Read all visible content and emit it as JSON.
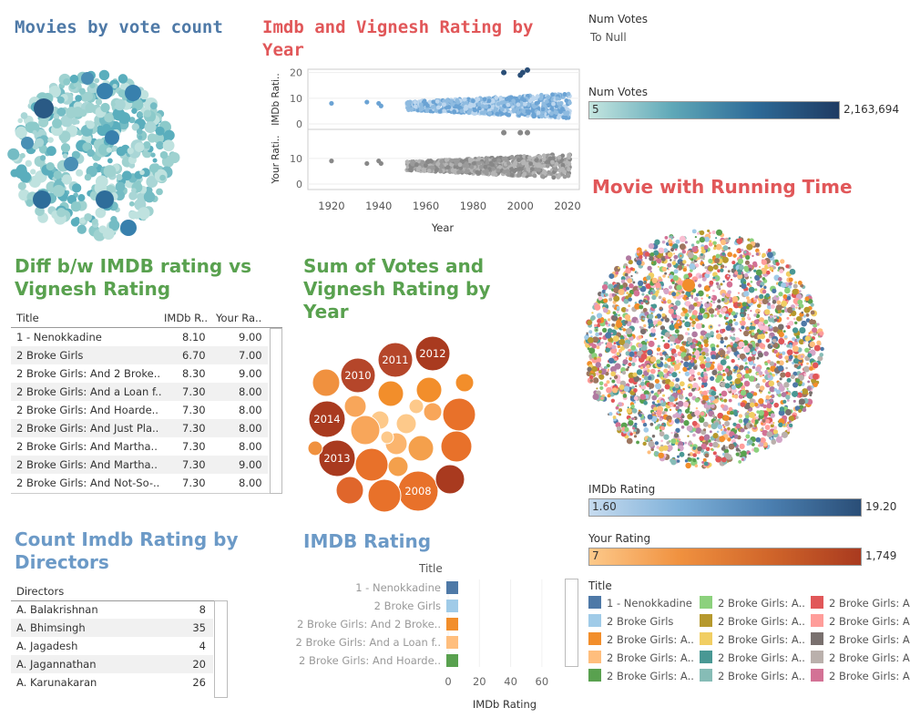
{
  "titles": {
    "movies_by_vote": "Movies by vote count",
    "imdb_vignesh_year": "Imdb and Vignesh Rating by Year",
    "diff": "Diff b/w IMDB rating vs Vignesh Rating",
    "sum_votes": "Sum of Votes and Vignesh Rating by Year",
    "running_time": "Movie with Running Time",
    "count_directors": "Count Imdb Rating by Directors",
    "imdb_rating": "IMDB Rating"
  },
  "num_votes_filter": {
    "label": "Num Votes",
    "value": "To Null"
  },
  "legends": {
    "num_votes": {
      "label": "Num Votes",
      "min": "5",
      "max": "2,163,694",
      "from": "#c5e6e0",
      "to": "#1f3b63"
    },
    "imdb_rating": {
      "label": "IMDb Rating",
      "min": "1.60",
      "max": "19.20",
      "from": "#c6dbef",
      "to": "#2a4e77"
    },
    "your_rating": {
      "label": "Your Rating",
      "min": "7",
      "max": "1,749",
      "from": "#fdc98a",
      "to": "#a93a1f"
    }
  },
  "diff_table": {
    "headers": [
      "Title",
      "IMDb R..",
      "Your Ra.."
    ],
    "rows": [
      [
        "1 - Nenokkadine",
        "8.10",
        "9.00"
      ],
      [
        "2 Broke Girls",
        "6.70",
        "7.00"
      ],
      [
        "2 Broke Girls: And 2 Broke..",
        "8.30",
        "9.00"
      ],
      [
        "2 Broke Girls: And a Loan f..",
        "7.30",
        "8.00"
      ],
      [
        "2 Broke Girls: And Hoarde..",
        "7.30",
        "8.00"
      ],
      [
        "2 Broke Girls: And Just Pla..",
        "7.30",
        "8.00"
      ],
      [
        "2 Broke Girls: And Martha..",
        "7.30",
        "8.00"
      ],
      [
        "2 Broke Girls: And Martha..",
        "7.30",
        "9.00"
      ],
      [
        "2 Broke Girls: And Not-So-..",
        "7.30",
        "8.00"
      ]
    ]
  },
  "directors_table": {
    "headers": [
      "Directors",
      ""
    ],
    "rows": [
      [
        "A. Balakrishnan",
        "8"
      ],
      [
        "A. Bhimsingh",
        "35"
      ],
      [
        "A. Jagadesh",
        "4"
      ],
      [
        "A. Jagannathan",
        "20"
      ],
      [
        "A. Karunakaran",
        "26"
      ]
    ]
  },
  "title_legend": {
    "label": "Title",
    "items": [
      {
        "label": "1 - Nenokkadine",
        "color": "#4e79a7"
      },
      {
        "label": "2 Broke Girls",
        "color": "#a0cbe8"
      },
      {
        "label": "2 Broke Girls: A..",
        "color": "#f28e2b"
      },
      {
        "label": "2 Broke Girls: A..",
        "color": "#ffbe7d"
      },
      {
        "label": "2 Broke Girls: A..",
        "color": "#59a14f"
      },
      {
        "label": "2 Broke Girls: A..",
        "color": "#8cd17d"
      },
      {
        "label": "2 Broke Girls: A..",
        "color": "#b6992d"
      },
      {
        "label": "2 Broke Girls: A..",
        "color": "#f1ce63"
      },
      {
        "label": "2 Broke Girls: A..",
        "color": "#499894"
      },
      {
        "label": "2 Broke Girls: A..",
        "color": "#86bcb6"
      },
      {
        "label": "2 Broke Girls: A",
        "color": "#e15759"
      },
      {
        "label": "2 Broke Girls: A",
        "color": "#ff9d9a"
      },
      {
        "label": "2 Broke Girls: A",
        "color": "#79706e"
      },
      {
        "label": "2 Broke Girls: A",
        "color": "#bab0ac"
      },
      {
        "label": "2 Broke Girls: A",
        "color": "#d37295"
      }
    ]
  },
  "chart_data": [
    {
      "type": "scatter",
      "title": "Imdb and Vignesh Rating by Year",
      "xlabel": "Year",
      "x_ticks": [
        "1920",
        "1940",
        "1960",
        "1980",
        "2000",
        "2020"
      ],
      "panels": [
        {
          "ylabel": "IMDb Rati..",
          "y_ticks": [
            "0",
            "10",
            "20"
          ],
          "ylim": [
            0,
            22
          ],
          "isolated_points": [
            [
              1920,
              8
            ],
            [
              1935,
              8.5
            ],
            [
              1940,
              8
            ],
            [
              1941,
              7
            ]
          ],
          "outliers": [
            [
              1993,
              20
            ],
            [
              2000,
              19
            ],
            [
              2001,
              20
            ],
            [
              2003,
              21
            ]
          ],
          "dense_band": {
            "x_from": 1952,
            "x_to": 2021,
            "y_from": 3,
            "y_to": 11
          }
        },
        {
          "ylabel": "Your Rati..",
          "y_ticks": [
            "0",
            "10"
          ],
          "ylim": [
            0,
            22
          ],
          "isolated_points": [
            [
              1920,
              9
            ],
            [
              1935,
              8
            ],
            [
              1940,
              9
            ],
            [
              1941,
              8
            ]
          ],
          "outliers": [
            [
              1993,
              20
            ],
            [
              2000,
              20
            ],
            [
              2003,
              20
            ]
          ],
          "dense_band": {
            "x_from": 1952,
            "x_to": 2021,
            "y_from": 3,
            "y_to": 11
          }
        }
      ]
    },
    {
      "type": "bubble",
      "title": "Sum of Votes and Vignesh Rating by Year",
      "labels": [
        "2012",
        "2011",
        "2010",
        "2014",
        "2013",
        "2008"
      ]
    },
    {
      "type": "bar",
      "title": "IMDB Rating",
      "categories": [
        "1 - Nenokkadine",
        "2 Broke Girls",
        "2 Broke Girls: And 2 Broke..",
        "2 Broke Girls: And a Loan f..",
        "2 Broke Girls: And Hoarde.."
      ],
      "values": [
        8.1,
        6.7,
        8.3,
        7.3,
        7.3
      ],
      "colors": [
        "#4e79a7",
        "#a0cbe8",
        "#f28e2b",
        "#ffbe7d",
        "#59a14f"
      ],
      "xlabel": "IMDb Rating",
      "xlim": [
        0,
        70
      ],
      "x_ticks": [
        "0",
        "20",
        "40",
        "60"
      ]
    }
  ]
}
